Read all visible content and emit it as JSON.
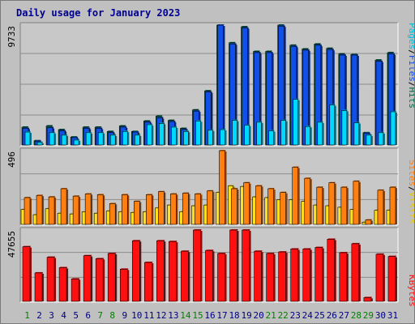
{
  "title": "Daily usage for January 2023",
  "colors": {
    "background": "#c0c0c0",
    "plot_bg": "#c8c8c8",
    "pages": "#00d8ff",
    "files": "#1050e8",
    "hits": "#006f4f",
    "visits": "#ffe020",
    "sites": "#ff8010",
    "kbytes": "#ff1010",
    "title_text": "#000090",
    "weekend_label": "#008000"
  },
  "side_labels": {
    "top": [
      {
        "text": "Pages",
        "color": "#00c0e0"
      },
      {
        "text": "/",
        "color": "#000000"
      },
      {
        "text": "Files",
        "color": "#1050e8"
      },
      {
        "text": "/",
        "color": "#000000"
      },
      {
        "text": "Hits",
        "color": "#006f4f"
      }
    ],
    "middle": [
      {
        "text": "Sites",
        "color": "#ff8010"
      },
      {
        "text": "/",
        "color": "#000000"
      },
      {
        "text": "Visits",
        "color": "#e8c800"
      }
    ],
    "bottom": [
      {
        "text": "KBytes",
        "color": "#ff1010"
      }
    ]
  },
  "chart_data": {
    "type": "bar",
    "title": "Daily usage for January 2023",
    "categories": [
      "1",
      "2",
      "3",
      "4",
      "5",
      "6",
      "7",
      "8",
      "9",
      "10",
      "11",
      "12",
      "13",
      "14",
      "15",
      "16",
      "17",
      "18",
      "19",
      "20",
      "21",
      "22",
      "23",
      "24",
      "25",
      "26",
      "27",
      "28",
      "29",
      "30",
      "31"
    ],
    "weekend_days": [
      "1",
      "7",
      "8",
      "14",
      "15",
      "21",
      "22",
      "28",
      "29"
    ],
    "panels": [
      {
        "name": "hits-files-pages",
        "ymax_label": "9733",
        "ylim": [
          0,
          9733
        ],
        "series": [
          {
            "name": "Hits",
            "values": [
              1450,
              350,
              1550,
              1250,
              650,
              1450,
              1450,
              1100,
              1550,
              1100,
              1950,
              2350,
              2000,
              1350,
              2850,
              4400,
              9733,
              8300,
              9600,
              7600,
              7600,
              9733,
              8100,
              7800,
              8200,
              7850,
              7400,
              7350,
              1000,
              6900,
              7500
            ]
          },
          {
            "name": "Files",
            "values": [
              1350,
              300,
              1400,
              1150,
              600,
              1350,
              1350,
              1000,
              1450,
              1050,
              1850,
              2200,
              1900,
              1250,
              2750,
              4300,
              9733,
              8200,
              9500,
              7500,
              7500,
              9650,
              8000,
              7700,
              8100,
              7750,
              7300,
              7300,
              950,
              6800,
              7400
            ]
          },
          {
            "name": "Pages",
            "values": [
              1050,
              200,
              1000,
              800,
              400,
              1000,
              1000,
              800,
              1100,
              800,
              1650,
              1750,
              1450,
              1100,
              1950,
              1200,
              1250,
              2000,
              1600,
              1850,
              1150,
              2000,
              3700,
              1500,
              1850,
              3250,
              2800,
              1800,
              800,
              1000,
              2700
            ]
          }
        ]
      },
      {
        "name": "sites-visits",
        "ymax_label": "496",
        "ylim": [
          0,
          496
        ],
        "series": [
          {
            "name": "Sites",
            "values": [
              180,
              195,
              185,
              240,
              190,
              205,
              200,
              140,
              200,
              155,
              200,
              220,
              205,
              210,
              205,
              225,
              496,
              240,
              280,
              260,
              240,
              215,
              385,
              310,
              250,
              280,
              250,
              290,
              30,
              230,
              250
            ]
          },
          {
            "name": "Visits",
            "values": [
              100,
              65,
              105,
              75,
              70,
              85,
              75,
              90,
              85,
              80,
              85,
              110,
              130,
              85,
              125,
              130,
              215,
              260,
              255,
              185,
              180,
              165,
              165,
              155,
              130,
              125,
              115,
              100,
              15,
              95,
              95
            ]
          }
        ]
      },
      {
        "name": "kbytes",
        "ymax_label": "47655",
        "ylim": [
          0,
          47655
        ],
        "series": [
          {
            "name": "KBytes",
            "values": [
              36500,
              19000,
              29500,
              22500,
              15000,
              30500,
              28500,
              32000,
              21500,
              40500,
              26000,
              40500,
              40000,
              33500,
              47655,
              34000,
              32000,
              47655,
              47655,
              33500,
              32000,
              33000,
              35000,
              35000,
              36000,
              41500,
              32500,
              38500,
              2500,
              31500,
              30000
            ]
          }
        ]
      }
    ]
  }
}
